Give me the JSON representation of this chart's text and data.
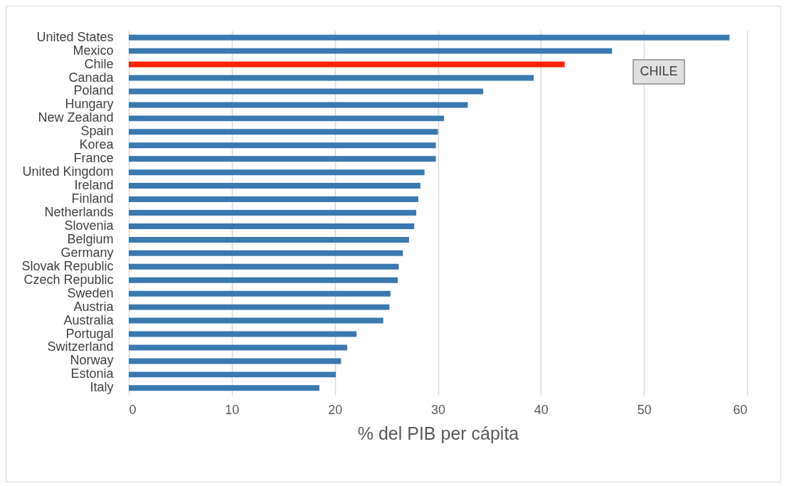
{
  "chart_data": {
    "type": "bar",
    "orientation": "horizontal",
    "xlabel": "% del PIB per cápita",
    "categories": [
      "United States",
      "Mexico",
      "Chile",
      "Canada",
      "Poland",
      "Hungary",
      "New Zealand",
      "Spain",
      "Korea",
      "France",
      "United Kingdom",
      "Ireland",
      "Finland",
      "Netherlands",
      "Slovenia",
      "Belgium",
      "Germany",
      "Slovak Republic",
      "Czech Republic",
      "Sweden",
      "Austria",
      "Australia",
      "Portugal",
      "Switzerland",
      "Norway",
      "Estonia",
      "Italy"
    ],
    "values": [
      58.3,
      46.9,
      42.3,
      39.3,
      34.4,
      32.9,
      30.6,
      30.0,
      29.8,
      29.8,
      28.7,
      28.3,
      28.1,
      27.9,
      27.7,
      27.2,
      26.6,
      26.2,
      26.1,
      25.4,
      25.3,
      24.7,
      22.1,
      21.2,
      20.6,
      20.1,
      18.5
    ],
    "colors": [
      "#3a78b0",
      "#3a78b0",
      "#ff2200",
      "#3a78b0",
      "#3a78b0",
      "#3a78b0",
      "#3a78b0",
      "#3a78b0",
      "#3a78b0",
      "#3a78b0",
      "#3a78b0",
      "#3a78b0",
      "#3a78b0",
      "#3a78b0",
      "#3a78b0",
      "#3a78b0",
      "#3a78b0",
      "#3a78b0",
      "#3a78b0",
      "#3a78b0",
      "#3a78b0",
      "#3a78b0",
      "#3a78b0",
      "#3a78b0",
      "#3a78b0",
      "#3a78b0",
      "#3a78b0"
    ],
    "xlim": [
      0,
      60
    ],
    "xticks": [
      0,
      10,
      20,
      30,
      40,
      50,
      60
    ],
    "grid": "x",
    "annotations": [
      "CHILE"
    ]
  }
}
